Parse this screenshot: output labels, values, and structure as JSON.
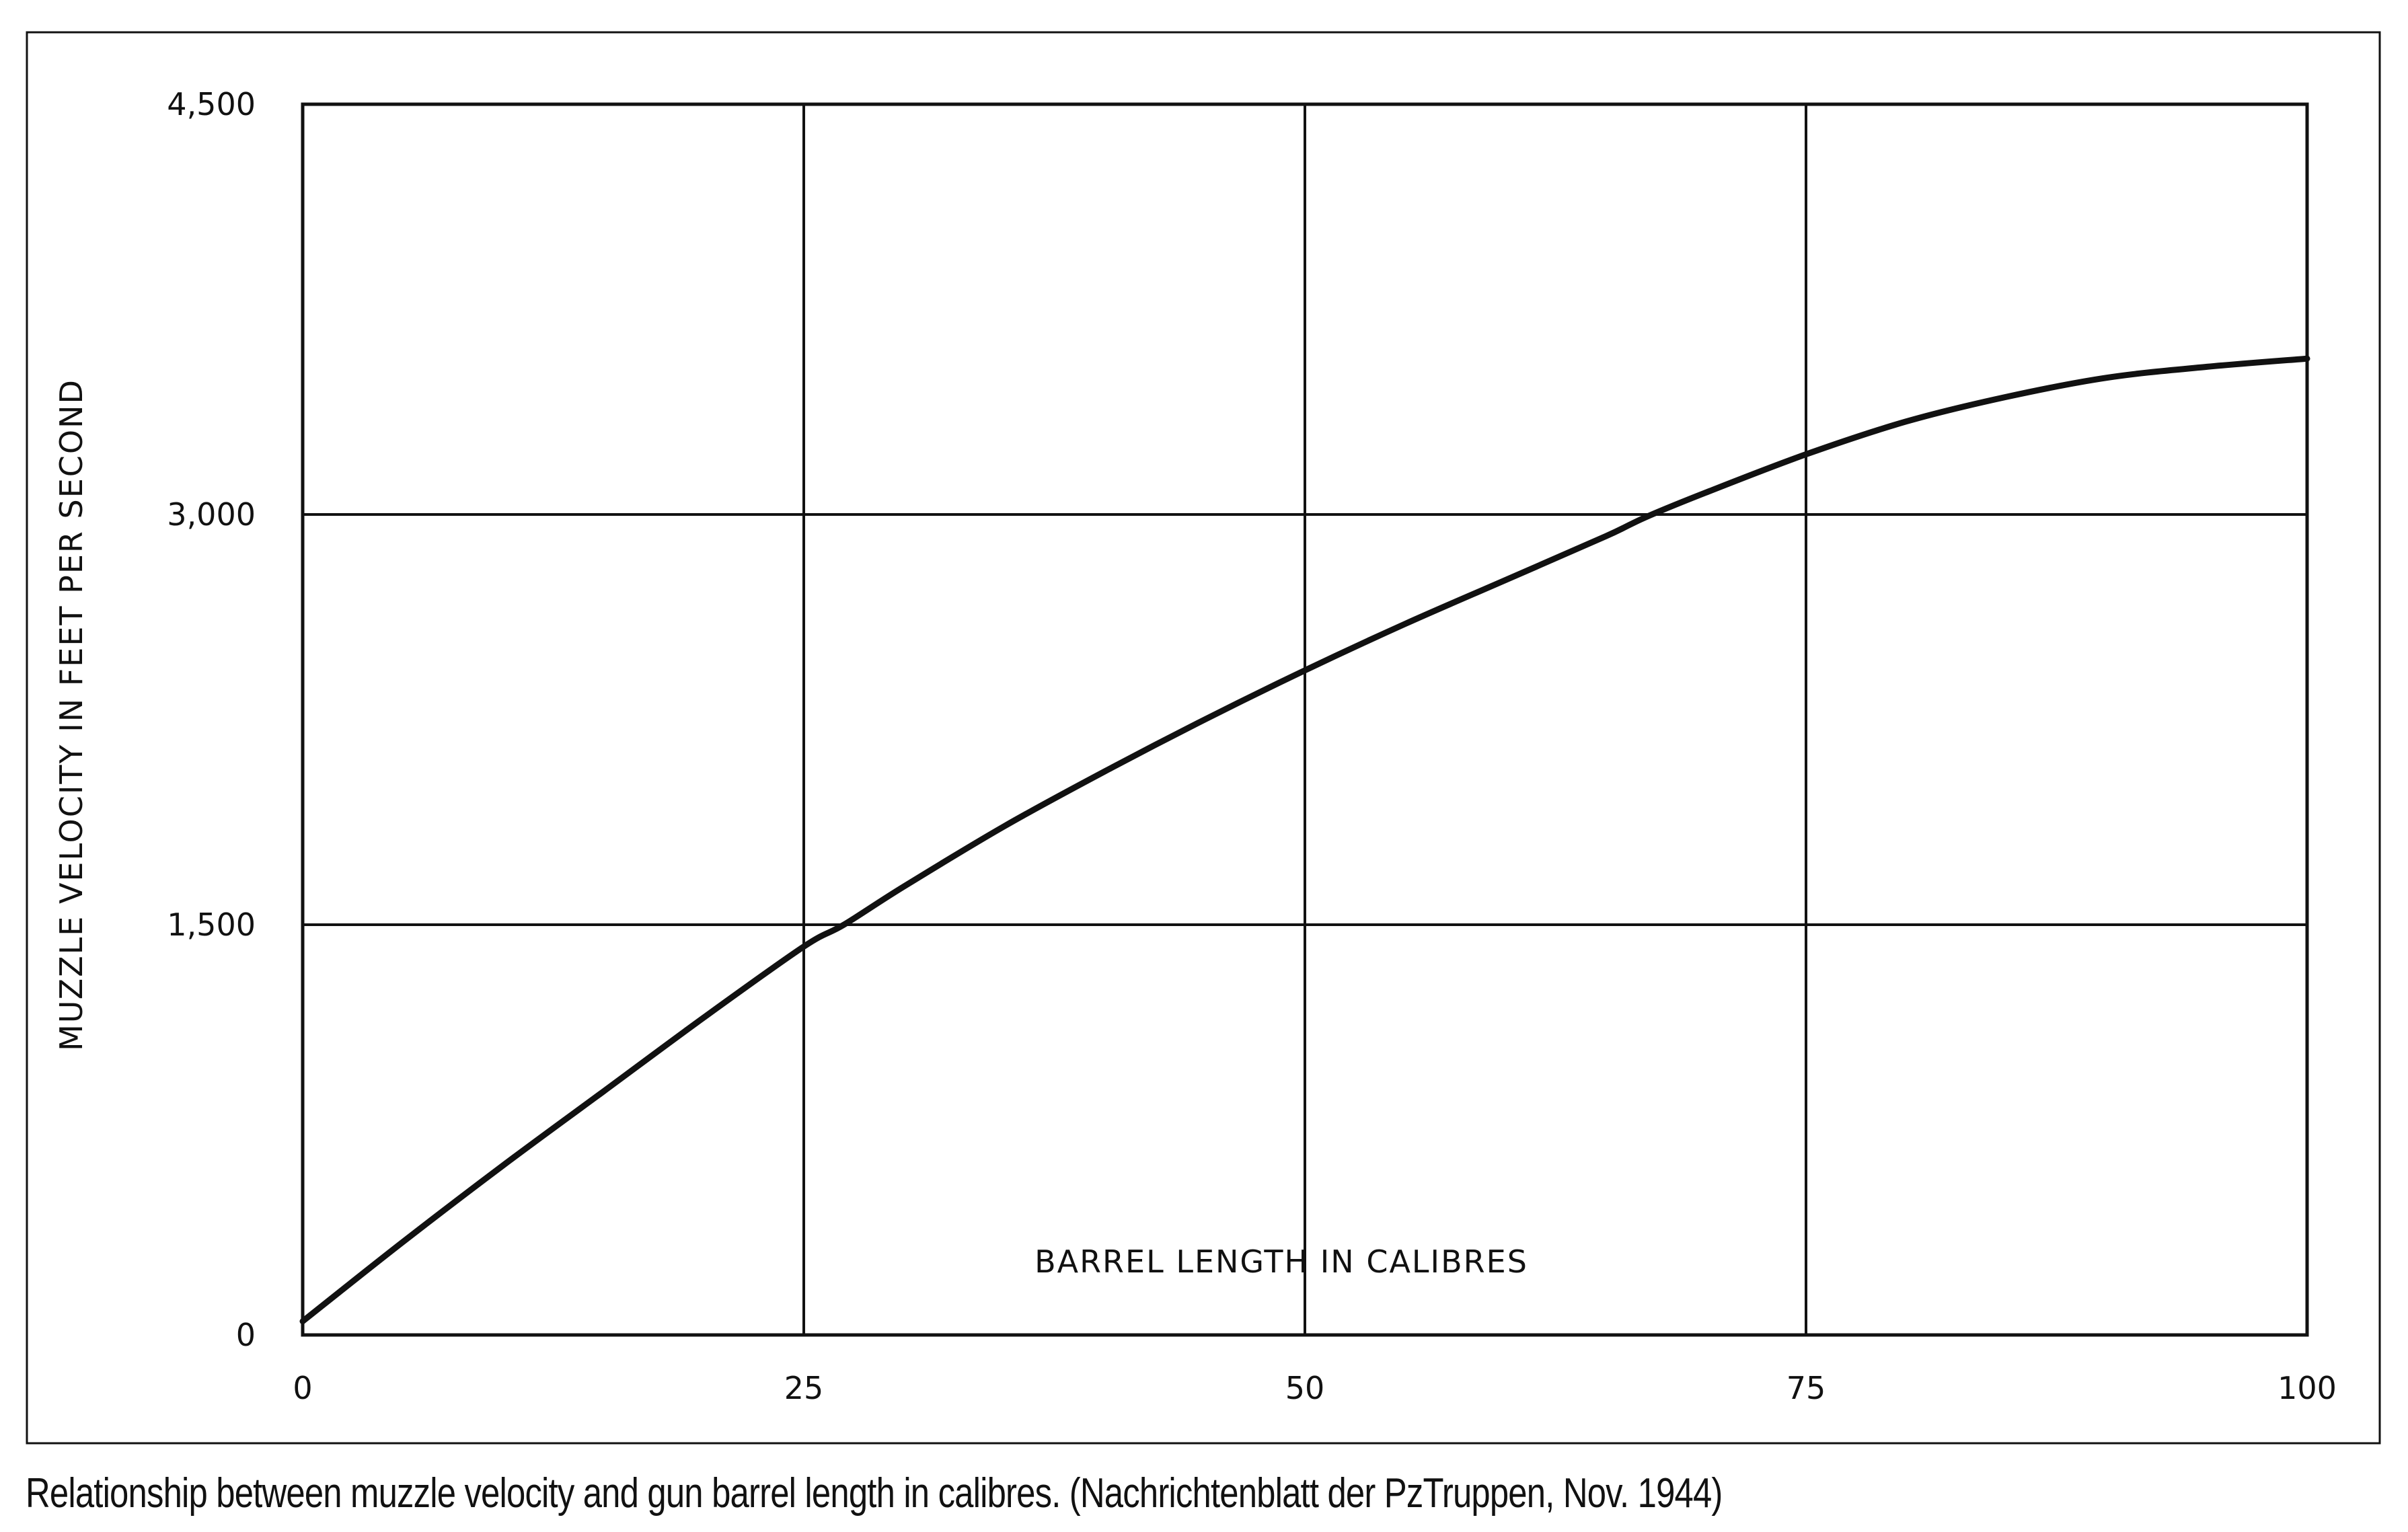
{
  "caption": "Relationship between muzzle velocity and gun barrel length in calibres. (Nachrichtenblatt der PzTruppen, Nov. 1944)",
  "chart_data": {
    "type": "line",
    "xlabel": "BARREL LENGTH IN CALIBRES",
    "ylabel": "MUZZLE VELOCITY IN FEET PER SECOND",
    "xlim": [
      0,
      100
    ],
    "ylim": [
      0,
      4500
    ],
    "x_ticks": [
      0,
      25,
      50,
      75,
      100
    ],
    "y_ticks": [
      0,
      1500,
      3000,
      4500
    ],
    "x_tick_labels": [
      "0",
      "25",
      "50",
      "75",
      "100"
    ],
    "y_tick_labels": [
      "0",
      "1,500",
      "3,000",
      "4,500"
    ],
    "grid": true,
    "legend": "none",
    "line_color": "#111111",
    "series": [
      {
        "x": [
          0,
          5,
          10,
          15,
          20,
          25,
          27,
          30,
          35,
          40,
          45,
          50,
          55,
          60,
          65,
          67,
          70,
          75,
          80,
          85,
          90,
          95,
          100
        ],
        "values": [
          50,
          340,
          620,
          890,
          1160,
          1420,
          1500,
          1640,
          1860,
          2060,
          2250,
          2430,
          2600,
          2760,
          2920,
          2990,
          3080,
          3220,
          3340,
          3430,
          3500,
          3540,
          3570
        ]
      }
    ]
  }
}
